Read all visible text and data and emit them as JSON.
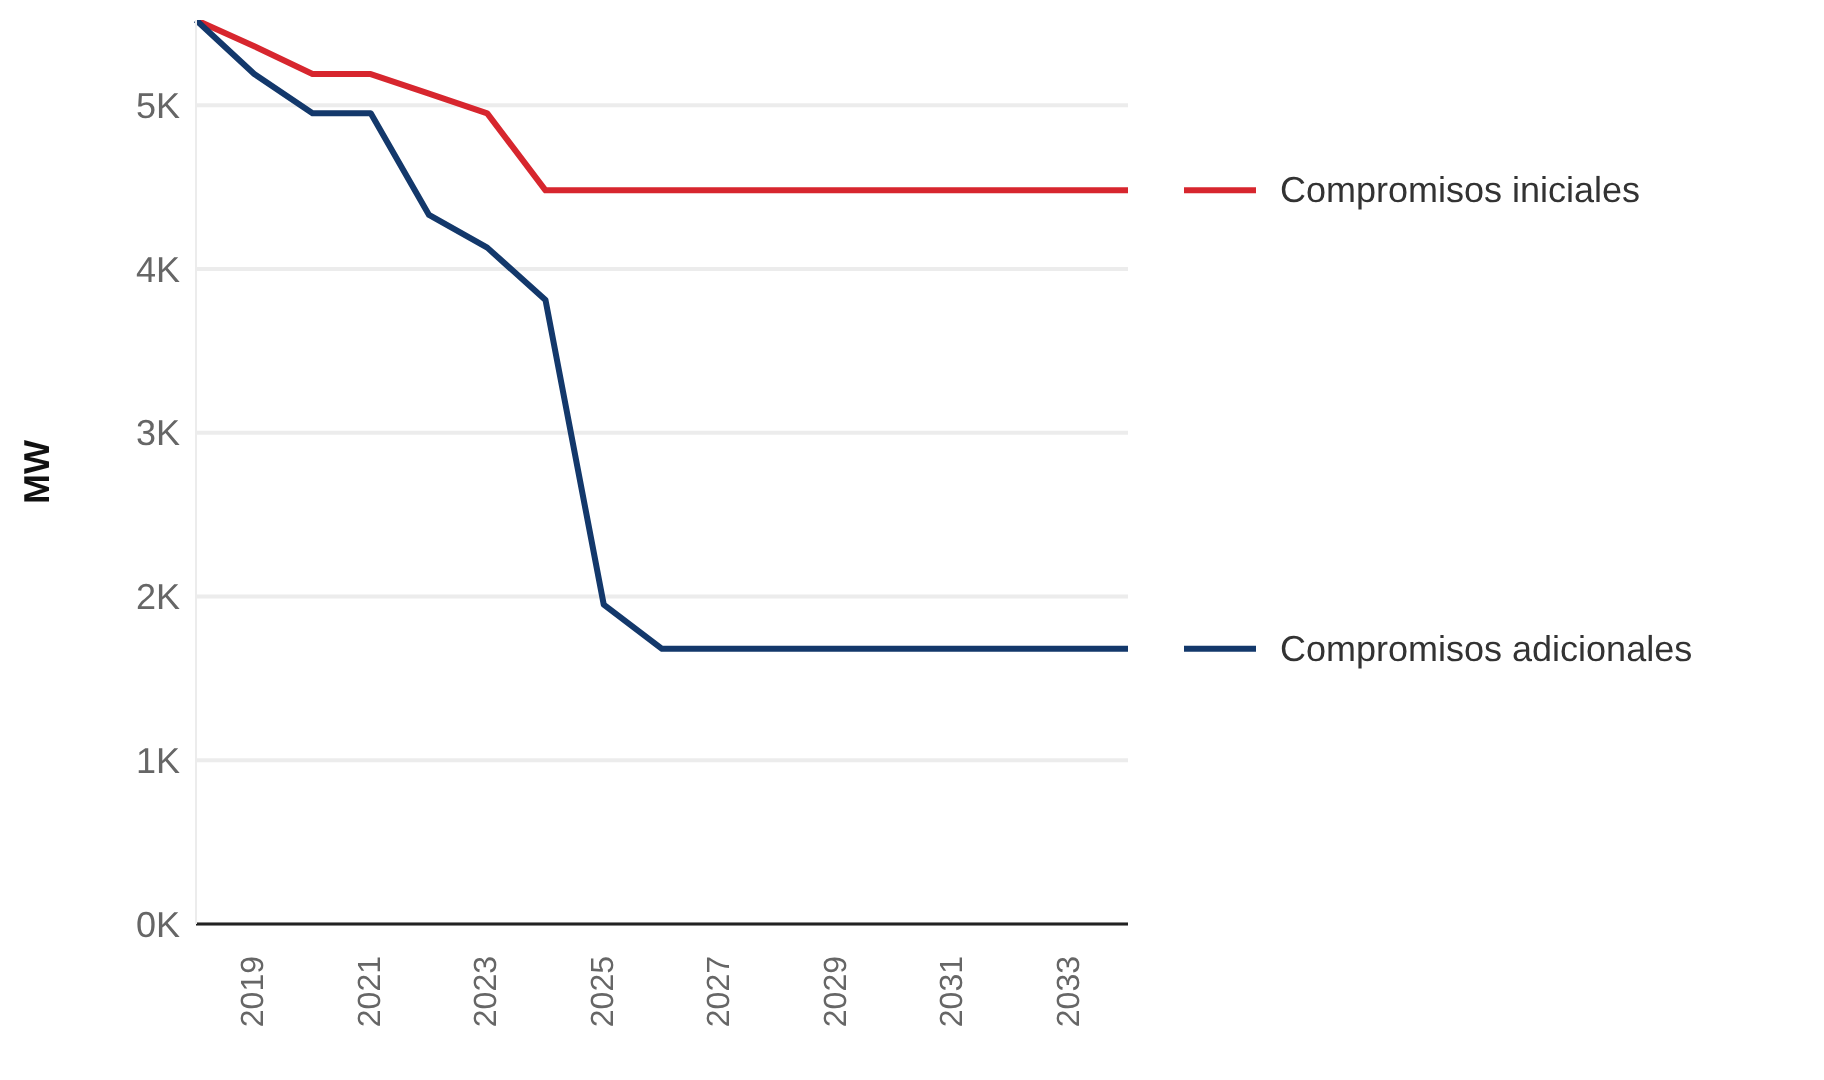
{
  "chart_data": {
    "type": "line",
    "ylabel": "MW",
    "categories": [
      null,
      "2019",
      null,
      "2021",
      null,
      "2023",
      null,
      "2025",
      null,
      "2027",
      null,
      "2029",
      null,
      "2031",
      null,
      "2033",
      null
    ],
    "series": [
      {
        "name": "Compromisos iniciales",
        "color": "#d7262e",
        "values": [
          5520,
          5360,
          5190,
          5190,
          5070,
          4950,
          4480,
          4480,
          4480,
          4480,
          4480,
          4480,
          4480,
          4480,
          4480,
          4480,
          4480
        ]
      },
      {
        "name": "Compromisos adicionales",
        "color": "#13386b",
        "values": [
          5520,
          5190,
          4950,
          4950,
          4330,
          4130,
          3810,
          1950,
          1680,
          1680,
          1680,
          1680,
          1680,
          1680,
          1680,
          1680,
          1680
        ]
      }
    ],
    "yticks": [
      {
        "value": 0,
        "label": "0K"
      },
      {
        "value": 1000,
        "label": "1K"
      },
      {
        "value": 2000,
        "label": "2K"
      },
      {
        "value": 3000,
        "label": "3K"
      },
      {
        "value": 4000,
        "label": "4K"
      },
      {
        "value": 5000,
        "label": "5K"
      }
    ],
    "ylim": [
      0,
      5520
    ],
    "grid": "y",
    "legend": "right",
    "marker": "none",
    "line_style": "solid"
  }
}
